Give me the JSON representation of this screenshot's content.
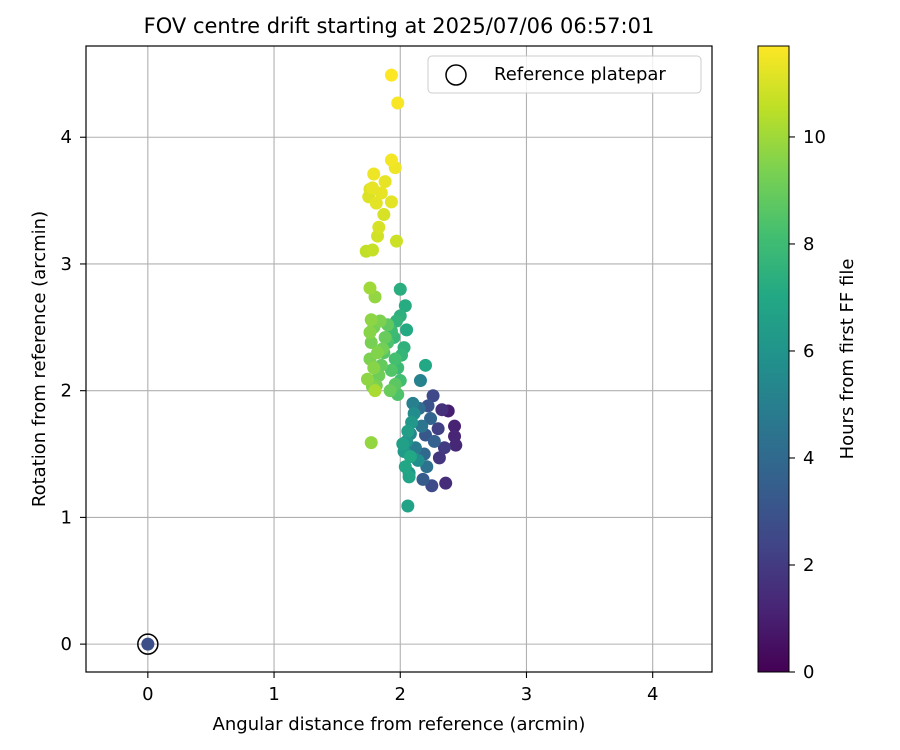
{
  "chart_data": {
    "type": "scatter",
    "title": "FOV centre drift starting at 2025/07/06 06:57:01",
    "xlabel": "Angular distance from reference (arcmin)",
    "ylabel": "Rotation from reference (arcmin)",
    "xlim": [
      -0.49,
      4.47
    ],
    "ylim": [
      -0.22,
      4.72
    ],
    "xticks": [
      0,
      1,
      2,
      3,
      4
    ],
    "yticks": [
      0,
      1,
      2,
      3,
      4
    ],
    "grid": true,
    "legend": {
      "position": "top-right",
      "entries": [
        "Reference platepar"
      ]
    },
    "colorbar": {
      "label": "Hours from first FF file",
      "range": [
        0,
        11.7
      ],
      "ticks": [
        0,
        2,
        4,
        6,
        8,
        10
      ],
      "colormap": "viridis"
    },
    "reference_point": {
      "x": 0.0,
      "y": 0.0,
      "label": "Reference platepar"
    },
    "series": [
      {
        "color_by": "hours",
        "points": [
          [
            0.0,
            0.0,
            2.8
          ],
          [
            2.38,
            1.84,
            1.0
          ],
          [
            2.43,
            1.72,
            1.1
          ],
          [
            2.43,
            1.64,
            1.2
          ],
          [
            2.44,
            1.57,
            1.3
          ],
          [
            2.36,
            1.27,
            1.5
          ],
          [
            2.33,
            1.85,
            1.6
          ],
          [
            2.31,
            1.47,
            1.8
          ],
          [
            2.35,
            1.55,
            2.0
          ],
          [
            2.3,
            1.7,
            2.2
          ],
          [
            2.26,
            1.96,
            2.5
          ],
          [
            2.25,
            1.25,
            2.7
          ],
          [
            2.22,
            1.88,
            3.0
          ],
          [
            2.2,
            1.65,
            3.2
          ],
          [
            2.18,
            1.3,
            3.4
          ],
          [
            2.27,
            1.6,
            3.6
          ],
          [
            2.24,
            1.78,
            3.8
          ],
          [
            2.19,
            1.5,
            4.0
          ],
          [
            2.15,
            1.86,
            4.2
          ],
          [
            2.21,
            1.4,
            4.4
          ],
          [
            2.17,
            1.72,
            4.6
          ],
          [
            2.12,
            1.55,
            4.8
          ],
          [
            2.1,
            1.9,
            5.0
          ],
          [
            2.16,
            2.08,
            5.2
          ],
          [
            2.08,
            1.66,
            5.4
          ],
          [
            2.11,
            1.82,
            5.6
          ],
          [
            2.14,
            1.45,
            5.8
          ],
          [
            2.05,
            1.6,
            6.0
          ],
          [
            2.07,
            1.35,
            6.1
          ],
          [
            2.09,
            1.75,
            6.2
          ],
          [
            2.03,
            1.52,
            6.3
          ],
          [
            2.06,
            1.68,
            6.5
          ],
          [
            2.02,
            1.58,
            6.6
          ],
          [
            2.06,
            1.09,
            6.7
          ],
          [
            2.07,
            1.32,
            6.8
          ],
          [
            2.04,
            1.4,
            6.9
          ],
          [
            2.2,
            2.2,
            7.0
          ],
          [
            2.08,
            1.48,
            7.0
          ],
          [
            2.05,
            2.48,
            7.1
          ],
          [
            2.04,
            2.67,
            7.2
          ],
          [
            2.0,
            2.8,
            7.3
          ],
          [
            2.0,
            2.59,
            7.4
          ],
          [
            2.03,
            2.34,
            7.5
          ],
          [
            1.97,
            2.55,
            7.6
          ],
          [
            2.01,
            2.28,
            7.7
          ],
          [
            1.95,
            2.42,
            7.8
          ],
          [
            1.98,
            2.18,
            7.9
          ],
          [
            1.93,
            2.47,
            8.0
          ],
          [
            2.0,
            2.08,
            8.1
          ],
          [
            1.96,
            2.25,
            8.2
          ],
          [
            1.9,
            2.38,
            8.3
          ],
          [
            1.98,
            1.97,
            8.4
          ],
          [
            1.93,
            2.16,
            8.5
          ],
          [
            1.87,
            2.3,
            8.6
          ],
          [
            1.96,
            2.05,
            8.7
          ],
          [
            1.9,
            2.52,
            8.8
          ],
          [
            1.85,
            2.2,
            8.9
          ],
          [
            1.92,
            2.0,
            9.0
          ],
          [
            1.88,
            2.42,
            9.0
          ],
          [
            1.83,
            2.12,
            9.1
          ],
          [
            1.79,
            2.5,
            9.2
          ],
          [
            1.86,
            2.33,
            9.2
          ],
          [
            1.77,
            2.38,
            9.3
          ],
          [
            1.81,
            2.04,
            9.3
          ],
          [
            1.84,
            2.55,
            9.4
          ],
          [
            1.76,
            2.25,
            9.4
          ],
          [
            1.78,
            2.03,
            9.5
          ],
          [
            1.82,
            2.3,
            9.5
          ],
          [
            1.76,
            2.46,
            9.6
          ],
          [
            1.79,
            2.18,
            9.6
          ],
          [
            1.74,
            2.09,
            9.7
          ],
          [
            1.77,
            2.56,
            9.7
          ],
          [
            1.8,
            2.74,
            9.8
          ],
          [
            1.77,
            1.59,
            9.8
          ],
          [
            1.76,
            2.81,
            10.0
          ],
          [
            1.8,
            2.0,
            10.2
          ],
          [
            1.73,
            3.1,
            10.6
          ],
          [
            1.78,
            3.11,
            10.7
          ],
          [
            1.97,
            3.18,
            10.8
          ],
          [
            1.82,
            3.22,
            10.9
          ],
          [
            1.83,
            3.29,
            11.0
          ],
          [
            1.87,
            3.39,
            11.0
          ],
          [
            1.75,
            3.53,
            11.1
          ],
          [
            1.76,
            3.59,
            11.1
          ],
          [
            1.81,
            3.48,
            11.2
          ],
          [
            1.93,
            3.49,
            11.2
          ],
          [
            1.78,
            3.6,
            11.3
          ],
          [
            1.85,
            3.56,
            11.3
          ],
          [
            1.88,
            3.65,
            11.3
          ],
          [
            1.79,
            3.71,
            11.4
          ],
          [
            1.96,
            3.76,
            11.4
          ],
          [
            1.93,
            3.82,
            11.5
          ],
          [
            1.98,
            4.27,
            11.6
          ],
          [
            1.93,
            4.49,
            11.7
          ]
        ]
      }
    ]
  }
}
